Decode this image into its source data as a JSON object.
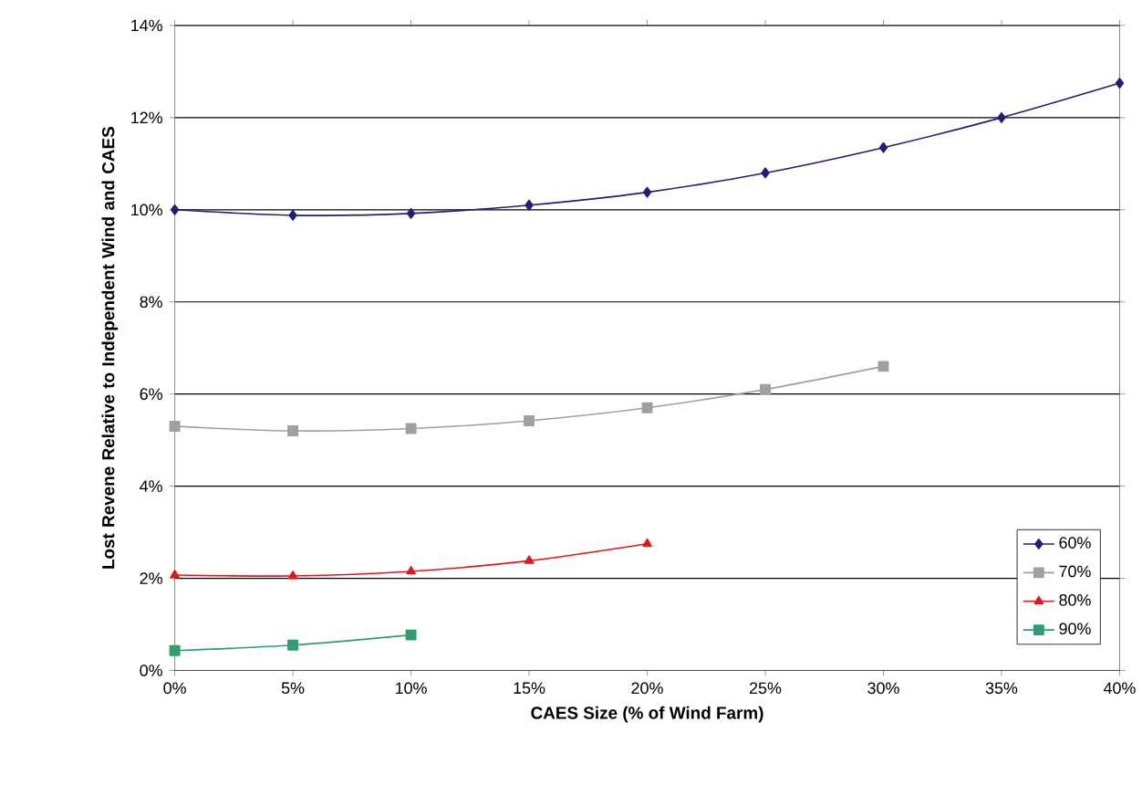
{
  "chart_data": {
    "type": "line",
    "xlabel": "CAES Size (% of Wind Farm)",
    "ylabel": "Lost Revene Relative to Independent Wind and CAES",
    "x": [
      0,
      5,
      10,
      15,
      20,
      25,
      30,
      35,
      40
    ],
    "series": [
      {
        "name": "60%",
        "color": "#1f1f7a",
        "marker": "diamond",
        "values": [
          10.0,
          9.88,
          9.92,
          10.1,
          10.38,
          10.8,
          11.35,
          12.0,
          12.75
        ]
      },
      {
        "name": "70%",
        "color": "#a0a0a0",
        "marker": "square",
        "values": [
          5.3,
          5.2,
          5.25,
          5.42,
          5.7,
          6.1,
          6.6,
          null,
          null
        ]
      },
      {
        "name": "80%",
        "color": "#e8141c",
        "marker": "triangle",
        "values": [
          2.07,
          2.05,
          2.15,
          2.38,
          2.75,
          null,
          null,
          null,
          null
        ]
      },
      {
        "name": "90%",
        "color": "#2e9e6e",
        "marker": "square",
        "values": [
          0.43,
          0.55,
          0.77,
          null,
          null,
          null,
          null,
          null,
          null
        ]
      }
    ],
    "xlim": [
      0,
      40
    ],
    "ylim": [
      0,
      14
    ],
    "xticks": [
      {
        "value": 0,
        "label": "0%"
      },
      {
        "value": 5,
        "label": "5%"
      },
      {
        "value": 10,
        "label": "10%"
      },
      {
        "value": 15,
        "label": "15%"
      },
      {
        "value": 20,
        "label": "20%"
      },
      {
        "value": 25,
        "label": "25%"
      },
      {
        "value": 30,
        "label": "30%"
      },
      {
        "value": 35,
        "label": "35%"
      },
      {
        "value": 40,
        "label": "40%"
      }
    ],
    "yticks": [
      {
        "value": 0,
        "label": "0%"
      },
      {
        "value": 2,
        "label": "2%"
      },
      {
        "value": 4,
        "label": "4%"
      },
      {
        "value": 6,
        "label": "6%"
      },
      {
        "value": 8,
        "label": "8%"
      },
      {
        "value": 10,
        "label": "10%"
      },
      {
        "value": 12,
        "label": "12%"
      },
      {
        "value": 14,
        "label": "14%"
      }
    ],
    "grid": "y",
    "legend": "bottom right",
    "line_style": "solid"
  }
}
